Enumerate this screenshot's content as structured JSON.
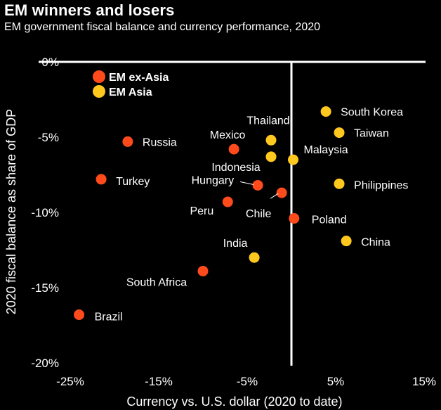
{
  "title": "EM winners and losers",
  "subtitle": "EM government fiscal balance and currency performance, 2020",
  "colors": {
    "background": "#000000",
    "axis": "#ffffff",
    "em_ex_asia": "#ff4a1c",
    "em_asia": "#ffc81e"
  },
  "chart_data": {
    "type": "scatter",
    "xlabel": "Currency vs. U.S. dollar (2020 to date)",
    "ylabel": "2020 fiscal balance as share of GDP",
    "xlim": [
      -25,
      15
    ],
    "ylim": [
      -20,
      0
    ],
    "x_ticks": [
      "-25%",
      "-15%",
      "-5%",
      "5%",
      "15%"
    ],
    "y_ticks": [
      "0%",
      "-5%",
      "-10%",
      "-15%",
      "-20%"
    ],
    "legend_position": "top-left",
    "series": [
      {
        "name": "EM ex-Asia",
        "color": "#ff4a1c",
        "points": [
          {
            "label": "Russia",
            "x": -18.5,
            "y": -5.3
          },
          {
            "label": "Mexico",
            "x": -6.5,
            "y": -5.8
          },
          {
            "label": "Turkey",
            "x": -21.5,
            "y": -7.8
          },
          {
            "label": "Hungary",
            "x": -3.8,
            "y": -8.2
          },
          {
            "label": "Chile",
            "x": -1.1,
            "y": -8.7
          },
          {
            "label": "Peru",
            "x": -7.2,
            "y": -9.3
          },
          {
            "label": "Poland",
            "x": 0.3,
            "y": -10.4
          },
          {
            "label": "South Africa",
            "x": -10,
            "y": -13.9
          },
          {
            "label": "Brazil",
            "x": -24,
            "y": -16.8
          }
        ]
      },
      {
        "name": "EM Asia",
        "color": "#ffc81e",
        "points": [
          {
            "label": "South Korea",
            "x": 3.9,
            "y": -3.3
          },
          {
            "label": "Taiwan",
            "x": 5.4,
            "y": -4.7
          },
          {
            "label": "Thailand",
            "x": -2.3,
            "y": -5.2
          },
          {
            "label": "Malaysia",
            "x": 0.2,
            "y": -6.5
          },
          {
            "label": "Indonesia",
            "x": -2.3,
            "y": -6.3
          },
          {
            "label": "Philippines",
            "x": 5.4,
            "y": -8.1
          },
          {
            "label": "China",
            "x": 6.2,
            "y": -11.9
          },
          {
            "label": "India",
            "x": -4.2,
            "y": -13.0
          }
        ]
      }
    ]
  }
}
